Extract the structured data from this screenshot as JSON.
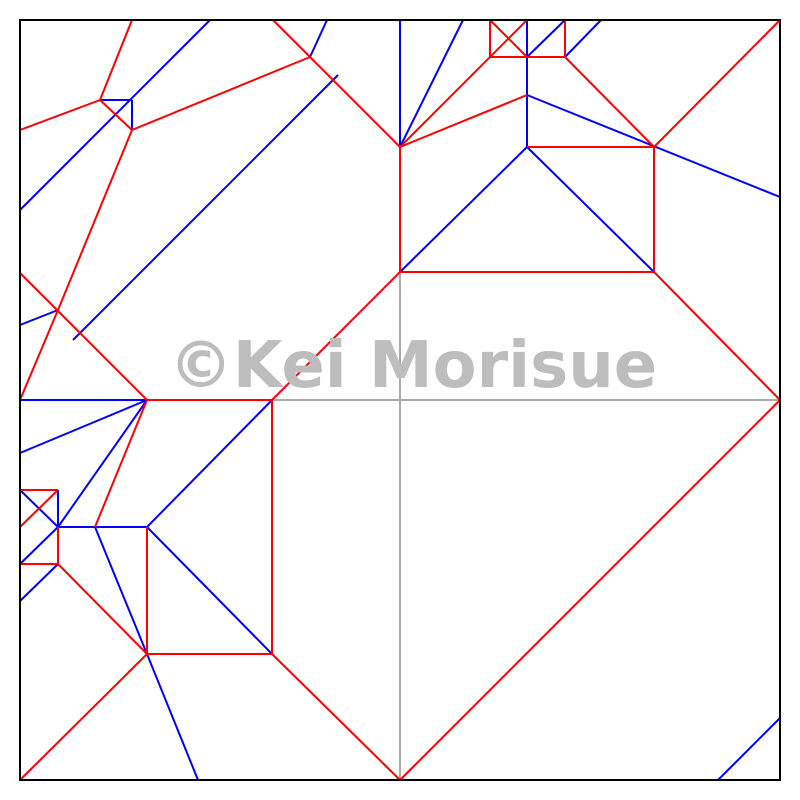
{
  "watermark": "©Kei Morisue",
  "colors": {
    "mountain": "#ff0000",
    "valley": "#0000ff",
    "aux": "#aaaaaa",
    "border": "#000000",
    "watermark": "#bdbdbd"
  }
}
